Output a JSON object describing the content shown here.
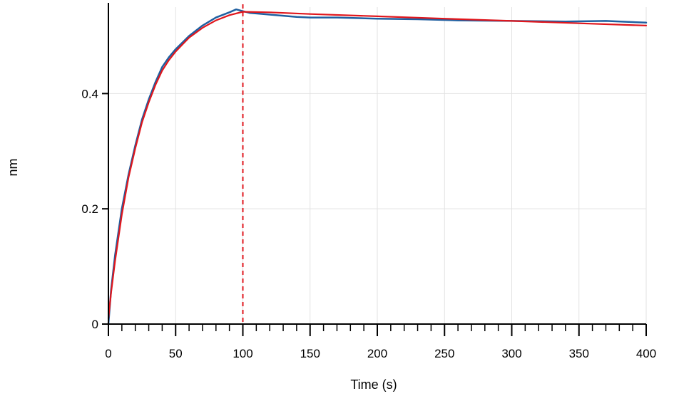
{
  "chart_data": {
    "type": "line",
    "xlabel": "Time (s)",
    "ylabel": "nm",
    "xlim": [
      0,
      400
    ],
    "ylim": [
      0,
      0.55
    ],
    "x_ticks": [
      0,
      50,
      100,
      150,
      200,
      250,
      300,
      350,
      400
    ],
    "y_ticks": [
      0,
      0.2,
      0.4
    ],
    "y_tick_labels": [
      "0",
      "0.2",
      "0.4"
    ],
    "x_minor_step": 10,
    "grid": true,
    "vertical_markers": [
      0,
      100
    ],
    "series": [
      {
        "color": "#1f5fa0",
        "x": [
          0,
          2,
          5,
          10,
          15,
          20,
          25,
          30,
          35,
          40,
          45,
          50,
          60,
          70,
          80,
          90,
          95,
          100,
          105,
          110,
          120,
          130,
          140,
          150,
          170,
          200,
          230,
          260,
          300,
          340,
          370,
          400
        ],
        "y": [
          0.0,
          0.06,
          0.12,
          0.2,
          0.26,
          0.31,
          0.355,
          0.39,
          0.42,
          0.446,
          0.463,
          0.477,
          0.5,
          0.518,
          0.532,
          0.541,
          0.546,
          0.543,
          0.54,
          0.539,
          0.537,
          0.535,
          0.533,
          0.532,
          0.532,
          0.53,
          0.529,
          0.527,
          0.526,
          0.525,
          0.526,
          0.523
        ]
      },
      {
        "color": "#e0161c",
        "x": [
          0,
          2,
          5,
          10,
          15,
          20,
          25,
          30,
          35,
          40,
          45,
          50,
          60,
          70,
          80,
          90,
          100,
          120,
          150,
          200,
          250,
          300,
          350,
          400
        ],
        "y": [
          0.01,
          0.055,
          0.11,
          0.19,
          0.255,
          0.305,
          0.35,
          0.385,
          0.415,
          0.44,
          0.458,
          0.473,
          0.497,
          0.514,
          0.527,
          0.536,
          0.542,
          0.541,
          0.538,
          0.534,
          0.53,
          0.526,
          0.522,
          0.518
        ]
      }
    ]
  }
}
